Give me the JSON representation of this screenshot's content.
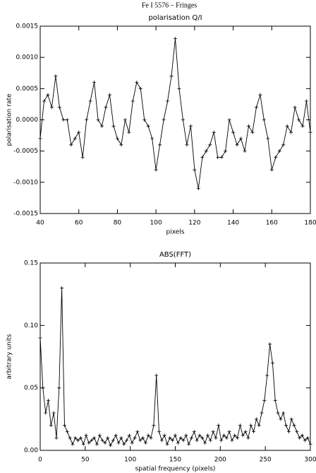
{
  "title": "Fe I 5576 – Fringes",
  "chart_data": [
    {
      "type": "line",
      "title": "polarisation Q/I",
      "x_label": "pixels",
      "y_label": "polarisation rate",
      "color": "#000000",
      "marker": "plus",
      "xlim": [
        40,
        180
      ],
      "xticks": [
        40,
        60,
        80,
        100,
        120,
        140,
        160,
        180
      ],
      "ylim": [
        -0.0015,
        0.0015
      ],
      "yticks": [
        {
          "value": -0.0015,
          "label": "-0.0015"
        },
        {
          "value": -0.001,
          "label": "-0.0010"
        },
        {
          "value": -0.0005,
          "label": "-0.0005"
        },
        {
          "value": 0,
          "label": "0.0000"
        },
        {
          "value": 0.0005,
          "label": "0.0005"
        },
        {
          "value": 0.001,
          "label": "0.0010"
        },
        {
          "value": 0.0015,
          "label": "0.0015"
        }
      ],
      "x": [
        40,
        42,
        44,
        46,
        48,
        50,
        52,
        54,
        56,
        58,
        60,
        62,
        64,
        66,
        68,
        70,
        72,
        74,
        76,
        78,
        80,
        82,
        84,
        86,
        88,
        90,
        92,
        94,
        96,
        98,
        100,
        102,
        104,
        106,
        108,
        110,
        112,
        114,
        116,
        118,
        120,
        122,
        124,
        126,
        128,
        130,
        132,
        134,
        136,
        138,
        140,
        142,
        144,
        146,
        148,
        150,
        152,
        154,
        156,
        158,
        160,
        162,
        164,
        166,
        168,
        170,
        172,
        174,
        176,
        178,
        180
      ],
      "values": [
        -0.0003,
        0.0003,
        0.0004,
        0.0002,
        0.0007,
        0.0002,
        0,
        0,
        -0.0004,
        -0.0003,
        -0.0002,
        -0.0006,
        0,
        0.0003,
        0.0006,
        0,
        -0.0001,
        0.0002,
        0.0004,
        -0.0001,
        -0.0003,
        -0.0004,
        0,
        -0.0002,
        0.0003,
        0.0006,
        0.0005,
        0,
        -0.0001,
        -0.0003,
        -0.0008,
        -0.0004,
        0,
        0.0003,
        0.0007,
        0.0013,
        0.0005,
        0,
        -0.0004,
        -0.0001,
        -0.0008,
        -0.0011,
        -0.0006,
        -0.0005,
        -0.0004,
        -0.0002,
        -0.0006,
        -0.0006,
        -0.0005,
        0,
        -0.0002,
        -0.0004,
        -0.0003,
        -0.0005,
        -0.0001,
        -0.0002,
        0.0002,
        0.0004,
        0,
        -0.0003,
        -0.0008,
        -0.0006,
        -0.0005,
        -0.0004,
        -0.0001,
        -0.0002,
        0.0002,
        0,
        -0.0001,
        0.0003,
        -0.0002
      ]
    },
    {
      "type": "line",
      "title": "ABS(FFT)",
      "x_label": "spatial frequency (pixels)",
      "y_label": "arbitrary units",
      "color": "#000000",
      "marker": "plus",
      "xlim": [
        0,
        300
      ],
      "xticks": [
        0,
        50,
        100,
        150,
        200,
        250,
        300
      ],
      "ylim": [
        0,
        0.15
      ],
      "yticks": [
        {
          "value": 0,
          "label": "0.00"
        },
        {
          "value": 0.05,
          "label": "0.05"
        },
        {
          "value": 0.1,
          "label": "0.10"
        },
        {
          "value": 0.15,
          "label": "0.15"
        }
      ],
      "x": [
        0,
        3,
        6,
        9,
        12,
        15,
        18,
        21,
        24,
        27,
        30,
        33,
        36,
        39,
        42,
        45,
        48,
        51,
        54,
        57,
        60,
        63,
        66,
        69,
        72,
        75,
        78,
        81,
        84,
        87,
        90,
        93,
        96,
        99,
        102,
        105,
        108,
        111,
        114,
        117,
        120,
        123,
        126,
        129,
        132,
        135,
        138,
        141,
        144,
        147,
        150,
        153,
        156,
        159,
        162,
        165,
        168,
        171,
        174,
        177,
        180,
        183,
        186,
        189,
        192,
        195,
        198,
        201,
        204,
        207,
        210,
        213,
        216,
        219,
        222,
        225,
        228,
        231,
        234,
        237,
        240,
        243,
        246,
        249,
        252,
        255,
        258,
        261,
        264,
        267,
        270,
        273,
        276,
        279,
        282,
        285,
        288,
        291,
        294,
        297,
        300
      ],
      "values": [
        0.09,
        0.05,
        0.03,
        0.04,
        0.02,
        0.03,
        0.01,
        0.05,
        0.13,
        0.02,
        0.015,
        0.01,
        0.005,
        0.01,
        0.008,
        0.01,
        0.005,
        0.012,
        0.006,
        0.008,
        0.01,
        0.005,
        0.012,
        0.008,
        0.006,
        0.01,
        0.004,
        0.008,
        0.012,
        0.006,
        0.01,
        0.005,
        0.008,
        0.012,
        0.006,
        0.01,
        0.015,
        0.008,
        0.01,
        0.006,
        0.012,
        0.01,
        0.02,
        0.06,
        0.015,
        0.008,
        0.012,
        0.005,
        0.01,
        0.008,
        0.012,
        0.006,
        0.01,
        0.008,
        0.012,
        0.005,
        0.01,
        0.015,
        0.008,
        0.012,
        0.01,
        0.006,
        0.012,
        0.008,
        0.015,
        0.01,
        0.02,
        0.008,
        0.012,
        0.01,
        0.015,
        0.008,
        0.012,
        0.01,
        0.02,
        0.012,
        0.015,
        0.01,
        0.02,
        0.015,
        0.025,
        0.02,
        0.03,
        0.04,
        0.06,
        0.085,
        0.07,
        0.04,
        0.03,
        0.025,
        0.03,
        0.02,
        0.015,
        0.025,
        0.02,
        0.015,
        0.01,
        0.012,
        0.008,
        0.01,
        0.005
      ]
    }
  ]
}
